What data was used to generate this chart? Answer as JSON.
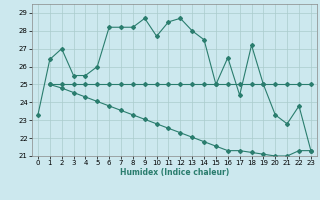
{
  "title": "",
  "xlabel": "Humidex (Indice chaleur)",
  "ylabel": "",
  "xlim": [
    -0.5,
    23.5
  ],
  "ylim": [
    21,
    29.5
  ],
  "yticks": [
    21,
    22,
    23,
    24,
    25,
    26,
    27,
    28,
    29
  ],
  "xticks": [
    0,
    1,
    2,
    3,
    4,
    5,
    6,
    7,
    8,
    9,
    10,
    11,
    12,
    13,
    14,
    15,
    16,
    17,
    18,
    19,
    20,
    21,
    22,
    23
  ],
  "line_color": "#2a7d6e",
  "bg_color": "#cce8ee",
  "grid_color": "#aacccc",
  "line1_x": [
    0,
    1,
    2,
    3,
    4,
    5,
    6,
    7,
    8,
    9,
    10,
    11,
    12,
    13,
    14,
    15,
    16,
    17,
    18,
    19,
    20,
    21,
    22,
    23
  ],
  "line1_y": [
    23.3,
    26.4,
    27.0,
    25.5,
    25.5,
    26.0,
    28.2,
    28.2,
    28.2,
    28.7,
    27.7,
    28.5,
    28.7,
    28.0,
    27.5,
    25.0,
    26.5,
    24.4,
    27.2,
    25.0,
    23.3,
    22.8,
    23.8,
    21.3
  ],
  "line2_x": [
    1,
    2,
    3,
    4,
    5,
    6,
    7,
    8,
    9,
    10,
    11,
    12,
    13,
    14,
    15,
    16,
    17,
    18,
    19,
    20,
    21,
    22,
    23
  ],
  "line2_y": [
    25.0,
    25.0,
    25.0,
    25.0,
    25.0,
    25.0,
    25.0,
    25.0,
    25.0,
    25.0,
    25.0,
    25.0,
    25.0,
    25.0,
    25.0,
    25.0,
    25.0,
    25.0,
    25.0,
    25.0,
    25.0,
    25.0,
    25.0
  ],
  "line3_x": [
    1,
    2,
    3,
    4,
    5,
    6,
    7,
    8,
    9,
    10,
    11,
    12,
    13,
    14,
    15,
    16,
    17,
    18,
    19,
    20,
    21,
    22,
    23
  ],
  "line3_y": [
    25.0,
    24.8,
    24.55,
    24.3,
    24.05,
    23.8,
    23.55,
    23.3,
    23.05,
    22.8,
    22.55,
    22.3,
    22.05,
    21.8,
    21.55,
    21.3,
    21.3,
    21.2,
    21.1,
    21.0,
    21.0,
    21.3,
    21.3
  ]
}
